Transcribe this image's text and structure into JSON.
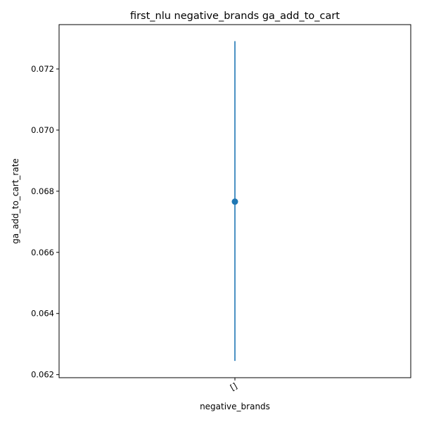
{
  "chart_data": {
    "type": "scatter",
    "title": "first_nlu negative_brands ga_add_to_cart",
    "xlabel": "negative_brands",
    "ylabel": "ga_add_to_cart_rate",
    "categories": [
      "[]"
    ],
    "series": [
      {
        "values": [
          0.06766
        ],
        "error_low": [
          0.06245
        ],
        "error_high": [
          0.07291
        ],
        "color": "#1f77b4"
      }
    ],
    "ylim": [
      0.0619,
      0.07345
    ],
    "yticks": [
      {
        "value": 0.062,
        "label": "0.062"
      },
      {
        "value": 0.064,
        "label": "0.064"
      },
      {
        "value": 0.066,
        "label": "0.066"
      },
      {
        "value": 0.068,
        "label": "0.068"
      },
      {
        "value": 0.07,
        "label": "0.070"
      },
      {
        "value": 0.072,
        "label": "0.072"
      }
    ],
    "grid": false,
    "legend": "none"
  }
}
